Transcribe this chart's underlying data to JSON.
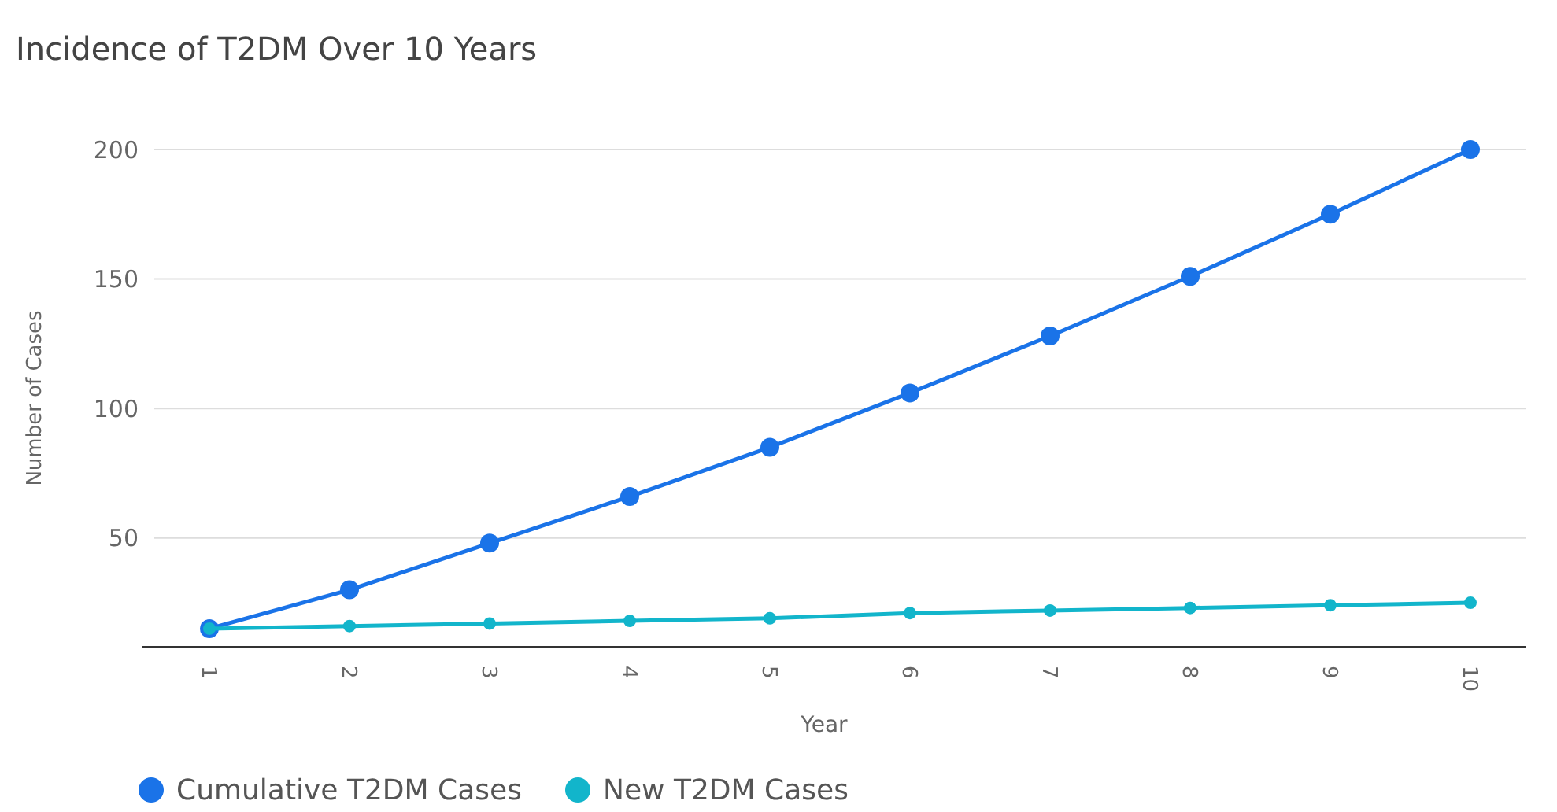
{
  "chart_data": {
    "type": "line",
    "title": "Incidence of T2DM Over 10 Years",
    "xlabel": "Year",
    "ylabel": "Number of Cases",
    "categories": [
      "1",
      "2",
      "3",
      "4",
      "5",
      "6",
      "7",
      "8",
      "9",
      "10"
    ],
    "series": [
      {
        "name": "Cumulative T2DM Cases",
        "color": "#1a73e8",
        "values": [
          15,
          30,
          48,
          66,
          85,
          106,
          128,
          151,
          175,
          200
        ]
      },
      {
        "name": "New T2DM Cases",
        "color": "#12b5cb",
        "values": [
          15,
          16,
          17,
          18,
          19,
          21,
          22,
          23,
          24,
          25
        ]
      }
    ],
    "ylim": [
      8,
      200
    ],
    "yticks": [
      50,
      100,
      150,
      200
    ],
    "grid": "y",
    "legend": "bottom left",
    "marker": "circle",
    "line_style": "solid"
  }
}
